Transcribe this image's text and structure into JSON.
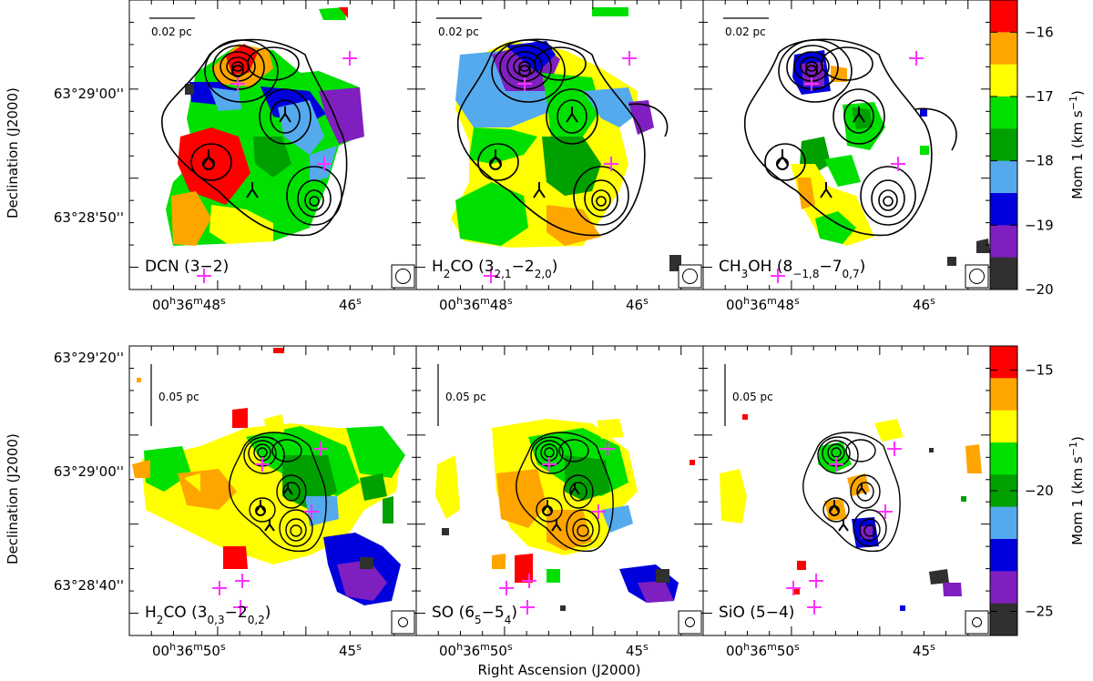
{
  "figure": {
    "y_axis_label": "Declination (J2000)",
    "x_axis_label": "Right Ascension (J2000)",
    "colorbar_label": "Mom 1 (km s",
    "colorbar_label_sup": "−1",
    "colorbar_label_end": ")"
  },
  "chart_data": [
    {
      "type": "heatmap",
      "row": "top",
      "scale_bar_label": "0.02 pc",
      "colorbar": {
        "ticks": [
          -16,
          -17,
          -18,
          -19,
          -20
        ],
        "range": [
          -20,
          -15.5
        ],
        "colors": [
          "#ff0000",
          "#ffa500",
          "#ffff00",
          "#00e000",
          "#00a000",
          "#55aaee",
          "#0000dd",
          "#7f1fbf",
          "#303030"
        ]
      },
      "y_ticks": [
        "63°29'00''",
        "63°28'50''"
      ],
      "x_ticks": [
        {
          "h": "00",
          "m": "36",
          "s": "48"
        },
        {
          "s": "46"
        }
      ],
      "panels": [
        {
          "label": "DCN (3−2)"
        },
        {
          "label": "H2CO (32,1−22,0)"
        },
        {
          "label": "CH3OH (8−1,8−70,7)"
        }
      ]
    },
    {
      "type": "heatmap",
      "row": "bottom",
      "scale_bar_label": "0.05 pc",
      "colorbar": {
        "ticks": [
          -15,
          -20,
          -25
        ],
        "range": [
          -26,
          -14
        ],
        "colors": [
          "#ff0000",
          "#ffa500",
          "#ffff00",
          "#00e000",
          "#00a000",
          "#55aaee",
          "#0000dd",
          "#7f1fbf",
          "#303030"
        ]
      },
      "y_ticks": [
        "63°29'20''",
        "63°29'00''",
        "63°28'40''"
      ],
      "x_ticks": [
        {
          "h": "00",
          "m": "36",
          "s": "50"
        },
        {
          "s": "45"
        }
      ],
      "panels": [
        {
          "label": "H2CO (30,3−20,2)"
        },
        {
          "label": "SO (65−54)"
        },
        {
          "label": "SiO (5−4)"
        }
      ]
    }
  ]
}
